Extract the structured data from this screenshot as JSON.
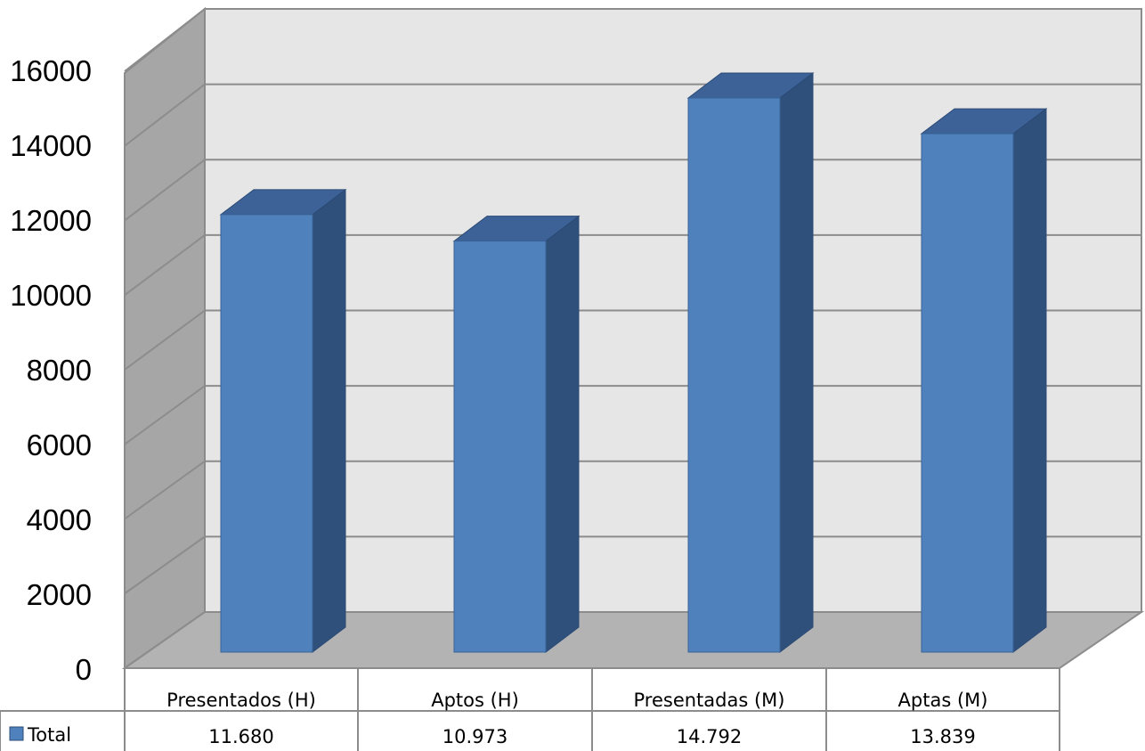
{
  "chart_data": {
    "type": "bar",
    "categories": [
      "Presentados (H)",
      "Aptos (H)",
      "Presentadas (M)",
      "Aptas (M)"
    ],
    "series": [
      {
        "name": "Total",
        "values": [
          11680,
          10973,
          14792,
          13839
        ],
        "value_labels": [
          "11.680",
          "10.973",
          "14.792",
          "13.839"
        ],
        "color": "#4f81bd"
      }
    ],
    "ylim": [
      0,
      16000
    ],
    "yticks": [
      "0",
      "2000",
      "4000",
      "6000",
      "8000",
      "10000",
      "12000",
      "14000",
      "16000"
    ],
    "grid": true,
    "legend": "data-table-left",
    "style": "3d-column-with-data-table"
  }
}
